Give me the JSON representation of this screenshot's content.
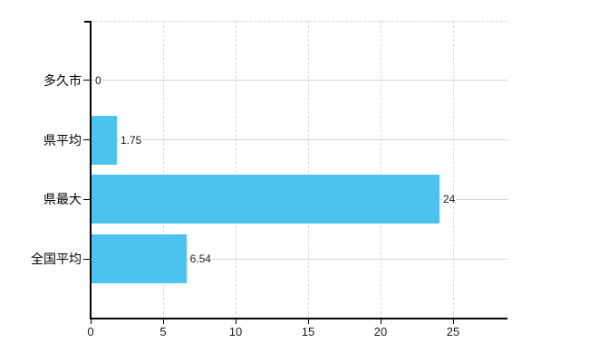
{
  "chart_data": {
    "type": "bar",
    "orientation": "horizontal",
    "title": "",
    "xlabel": "",
    "ylabel": "",
    "categories": [
      "多久市",
      "県平均",
      "県最大",
      "全国平均"
    ],
    "values": [
      0,
      1.75,
      24,
      6.54
    ],
    "value_labels": [
      "0",
      "1.75",
      "24",
      "6.54"
    ],
    "x_ticks": [
      0,
      5,
      10,
      15,
      20,
      25
    ],
    "x_tick_labels": [
      "0",
      "5",
      "10",
      "15",
      "20",
      "25"
    ],
    "xlim": [
      0,
      28.75
    ],
    "grid": true,
    "legend": false,
    "bar_color": "#4AC3F1",
    "axis_color": "#000000",
    "hgrid_color": "#cfd8cd",
    "vgrid_color": "#d8d8d8",
    "background_color": "#ffffff"
  }
}
